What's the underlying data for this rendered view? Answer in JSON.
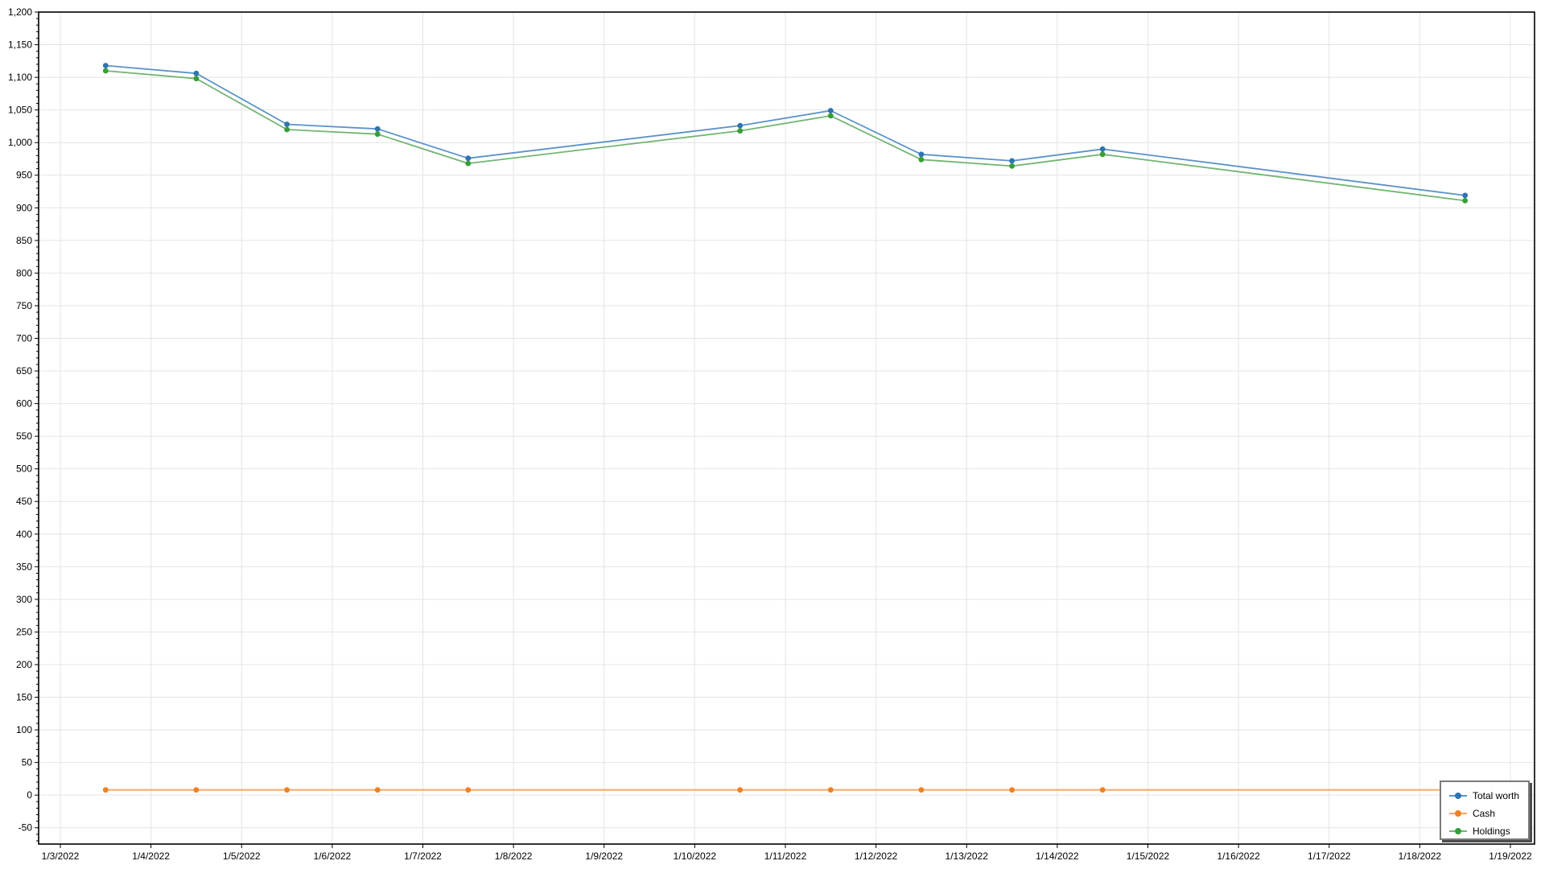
{
  "chart_data": {
    "type": "line",
    "title": "",
    "xlabel": "",
    "ylabel": "",
    "grid": true,
    "x_tick_labels": [
      "1/3/2022",
      "1/4/2022",
      "1/5/2022",
      "1/6/2022",
      "1/7/2022",
      "1/8/2022",
      "1/9/2022",
      "1/10/2022",
      "1/11/2022",
      "1/12/2022",
      "1/13/2022",
      "1/14/2022",
      "1/15/2022",
      "1/16/2022",
      "1/17/2022",
      "1/18/2022",
      "1/19/2022"
    ],
    "y_axis": {
      "min": -75,
      "max": 1200,
      "major_tick_step": 50,
      "minor_tick_step": 10,
      "first_label": -50,
      "last_label": 1200
    },
    "categories": [
      "1/3/2022",
      "1/4/2022",
      "1/5/2022",
      "1/6/2022",
      "1/7/2022",
      "1/10/2022",
      "1/11/2022",
      "1/12/2022",
      "1/13/2022",
      "1/14/2022",
      "1/18/2022"
    ],
    "day_offsets": [
      0,
      1,
      2,
      3,
      4,
      7,
      8,
      9,
      10,
      11,
      15
    ],
    "series": [
      {
        "name": "Total worth",
        "line_color": "#5b93c8",
        "marker_color": "#2e74b0",
        "values": [
          1118,
          1106,
          1028,
          1021,
          976,
          1026,
          1049,
          982,
          972,
          990,
          919
        ]
      },
      {
        "name": "Cash",
        "line_color": "#f8a55a",
        "marker_color": "#ef8122",
        "values": [
          8,
          8,
          8,
          8,
          8,
          8,
          8,
          8,
          8,
          8,
          8
        ]
      },
      {
        "name": "Holdings",
        "line_color": "#74b474",
        "marker_color": "#379e37",
        "values": [
          1110,
          1098,
          1020,
          1013,
          968,
          1018,
          1041,
          974,
          964,
          982,
          911
        ]
      }
    ],
    "legend": {
      "position": "bottom-right",
      "entries": [
        "Total worth",
        "Cash",
        "Holdings"
      ]
    }
  },
  "colors": {
    "grid": "#e4e4e4",
    "plot_border": "#000000",
    "tick": "#000000",
    "label_text": "#000000",
    "background": "#ffffff"
  }
}
